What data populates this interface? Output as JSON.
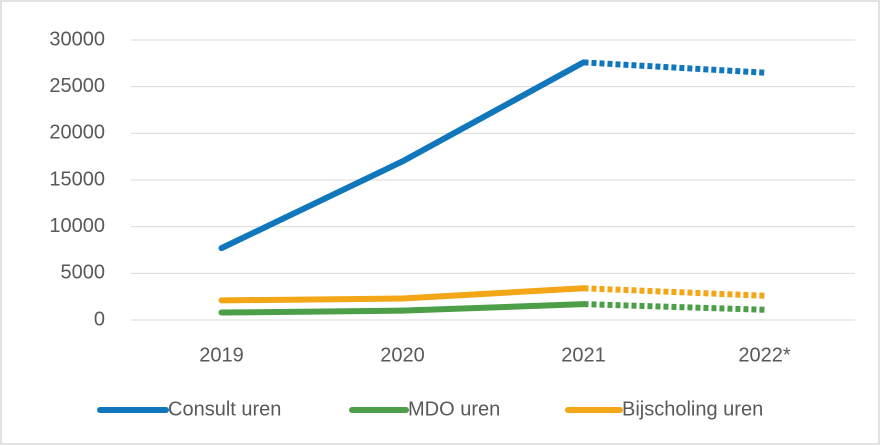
{
  "chart_data": {
    "type": "line",
    "categories": [
      "2019",
      "2020",
      "2021",
      "2022*"
    ],
    "series": [
      {
        "name": "Consult uren",
        "color": "#1077bd",
        "values": [
          7700,
          17000,
          27600,
          26500
        ]
      },
      {
        "name": "MDO uren",
        "color": "#4c9f48",
        "values": [
          800,
          1000,
          1700,
          1100
        ]
      },
      {
        "name": "Bijscholing uren",
        "color": "#f2a618",
        "values": [
          2100,
          2300,
          3400,
          2600
        ]
      }
    ],
    "ylim": [
      0,
      30000
    ],
    "yticks": [
      0,
      5000,
      10000,
      15000,
      20000,
      25000,
      30000
    ],
    "grid": true,
    "legend": "bottom",
    "dashed_last_segment": true
  }
}
